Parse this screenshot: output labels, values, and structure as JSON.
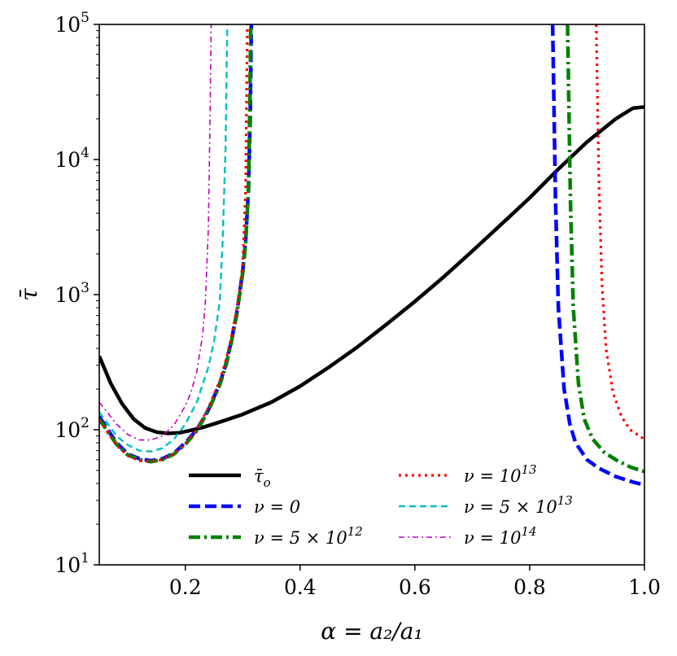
{
  "chart_data": {
    "type": "line",
    "xscale": "linear",
    "yscale": "log",
    "xlim": [
      0.05,
      1.0
    ],
    "ylim": [
      10,
      100000
    ],
    "xlabel": "α = a₂/a₁",
    "ylabel": "τ̄",
    "xticks": [
      {
        "value": 0.2,
        "label": "0.2"
      },
      {
        "value": 0.4,
        "label": "0.4"
      },
      {
        "value": 0.6,
        "label": "0.6"
      },
      {
        "value": 0.8,
        "label": "0.8"
      },
      {
        "value": 1.0,
        "label": "1.0"
      }
    ],
    "yticks": [
      {
        "value": 10,
        "base": "10",
        "exp": "1"
      },
      {
        "value": 100,
        "base": "10",
        "exp": "2"
      },
      {
        "value": 1000,
        "base": "10",
        "exp": "3"
      },
      {
        "value": 10000,
        "base": "10",
        "exp": "4"
      },
      {
        "value": 100000,
        "base": "10",
        "exp": "5"
      }
    ],
    "legend_position": "lower-center",
    "series": [
      {
        "name": "tau_o",
        "label_main": "τ̄",
        "label_sub": "o",
        "color": "#000000",
        "style": "solid",
        "segments": [
          [
            [
              0.05,
              350
            ],
            [
              0.07,
              220
            ],
            [
              0.09,
              155
            ],
            [
              0.11,
              120
            ],
            [
              0.13,
              103
            ],
            [
              0.15,
              96
            ],
            [
              0.17,
              94
            ],
            [
              0.19,
              95
            ],
            [
              0.21,
              99
            ],
            [
              0.23,
              104
            ],
            [
              0.26,
              114
            ],
            [
              0.3,
              130
            ],
            [
              0.35,
              160
            ],
            [
              0.4,
              210
            ],
            [
              0.45,
              290
            ],
            [
              0.5,
              410
            ],
            [
              0.55,
              600
            ],
            [
              0.6,
              890
            ],
            [
              0.65,
              1350
            ],
            [
              0.7,
              2100
            ],
            [
              0.75,
              3300
            ],
            [
              0.8,
              5200
            ],
            [
              0.85,
              8500
            ],
            [
              0.9,
              13500
            ],
            [
              0.95,
              20000
            ],
            [
              0.98,
              24000
            ],
            [
              1.0,
              24500
            ]
          ]
        ]
      },
      {
        "name": "nu_0",
        "label_main": "ν = 0",
        "label_sup": "",
        "color": "#0000ff",
        "style": "dashed",
        "segments": [
          [
            [
              0.05,
              125
            ],
            [
              0.08,
              80
            ],
            [
              0.1,
              66
            ],
            [
              0.12,
              61
            ],
            [
              0.14,
              59
            ],
            [
              0.16,
              61
            ],
            [
              0.18,
              67
            ],
            [
              0.2,
              80
            ],
            [
              0.22,
              100
            ],
            [
              0.24,
              140
            ],
            [
              0.26,
              220
            ],
            [
              0.27,
              300
            ],
            [
              0.28,
              450
            ],
            [
              0.29,
              750
            ],
            [
              0.3,
              1500
            ],
            [
              0.305,
              2500
            ],
            [
              0.31,
              6000
            ],
            [
              0.313,
              20000
            ],
            [
              0.315,
              100000
            ]
          ],
          [
            [
              0.84,
              100000
            ],
            [
              0.842,
              30000
            ],
            [
              0.845,
              5000
            ],
            [
              0.85,
              800
            ],
            [
              0.86,
              200
            ],
            [
              0.87,
              110
            ],
            [
              0.88,
              80
            ],
            [
              0.9,
              60
            ],
            [
              0.92,
              52
            ],
            [
              0.95,
              45
            ],
            [
              0.98,
              41
            ],
            [
              1.0,
              39
            ]
          ]
        ]
      },
      {
        "name": "nu_5e12",
        "label_main": "ν = 5 × 10",
        "label_sup": "12",
        "color": "#008000",
        "style": "dashdot",
        "segments": [
          [
            [
              0.05,
              120
            ],
            [
              0.08,
              78
            ],
            [
              0.1,
              65
            ],
            [
              0.12,
              60
            ],
            [
              0.14,
              58
            ],
            [
              0.16,
              60
            ],
            [
              0.18,
              66
            ],
            [
              0.2,
              78
            ],
            [
              0.22,
              98
            ],
            [
              0.24,
              138
            ],
            [
              0.26,
              215
            ],
            [
              0.27,
              290
            ],
            [
              0.28,
              440
            ],
            [
              0.29,
              730
            ],
            [
              0.3,
              1450
            ],
            [
              0.305,
              2400
            ],
            [
              0.31,
              6000
            ],
            [
              0.312,
              20000
            ],
            [
              0.314,
              100000
            ]
          ],
          [
            [
              0.866,
              100000
            ],
            [
              0.868,
              30000
            ],
            [
              0.871,
              5000
            ],
            [
              0.876,
              800
            ],
            [
              0.885,
              220
            ],
            [
              0.895,
              120
            ],
            [
              0.91,
              85
            ],
            [
              0.93,
              68
            ],
            [
              0.95,
              60
            ],
            [
              0.975,
              53
            ],
            [
              1.0,
              49
            ]
          ]
        ]
      },
      {
        "name": "nu_1e13",
        "label_main": "ν = 10",
        "label_sup": "13",
        "color": "#ff0000",
        "style": "dotted",
        "segments": [
          [
            [
              0.05,
              118
            ],
            [
              0.08,
              77
            ],
            [
              0.1,
              64
            ],
            [
              0.12,
              59
            ],
            [
              0.14,
              58
            ],
            [
              0.16,
              60
            ],
            [
              0.18,
              66
            ],
            [
              0.2,
              78
            ],
            [
              0.22,
              100
            ],
            [
              0.24,
              145
            ],
            [
              0.26,
              230
            ],
            [
              0.27,
              320
            ],
            [
              0.28,
              480
            ],
            [
              0.29,
              800
            ],
            [
              0.295,
              1100
            ],
            [
              0.3,
              1700
            ],
            [
              0.305,
              6000
            ],
            [
              0.308,
              100000
            ]
          ],
          [
            [
              0.916,
              100000
            ],
            [
              0.918,
              30000
            ],
            [
              0.921,
              6000
            ],
            [
              0.926,
              1200
            ],
            [
              0.933,
              400
            ],
            [
              0.945,
              190
            ],
            [
              0.96,
              125
            ],
            [
              0.975,
              100
            ],
            [
              1.0,
              85
            ]
          ]
        ]
      },
      {
        "name": "nu_5e13",
        "label_main": "ν = 5 × 10",
        "label_sup": "13",
        "color": "#00bfbf",
        "style": "dashed-short",
        "segments": [
          [
            [
              0.05,
              135
            ],
            [
              0.08,
              90
            ],
            [
              0.1,
              77
            ],
            [
              0.12,
              70
            ],
            [
              0.14,
              69
            ],
            [
              0.16,
              73
            ],
            [
              0.18,
              85
            ],
            [
              0.2,
              110
            ],
            [
              0.22,
              160
            ],
            [
              0.24,
              290
            ],
            [
              0.25,
              450
            ],
            [
              0.26,
              900
            ],
            [
              0.265,
              2500
            ],
            [
              0.27,
              12000
            ],
            [
              0.273,
              100000
            ]
          ]
        ]
      },
      {
        "name": "nu_1e14",
        "label_main": "ν = 10",
        "label_sup": "14",
        "color": "#bf00bf",
        "style": "dashdot-thin",
        "segments": [
          [
            [
              0.05,
              160
            ],
            [
              0.08,
              110
            ],
            [
              0.1,
              92
            ],
            [
              0.12,
              84
            ],
            [
              0.14,
              84
            ],
            [
              0.16,
              90
            ],
            [
              0.18,
              108
            ],
            [
              0.2,
              150
            ],
            [
              0.21,
              190
            ],
            [
              0.22,
              270
            ],
            [
              0.23,
              500
            ],
            [
              0.235,
              900
            ],
            [
              0.24,
              3000
            ],
            [
              0.243,
              20000
            ],
            [
              0.245,
              100000
            ]
          ]
        ]
      }
    ]
  }
}
